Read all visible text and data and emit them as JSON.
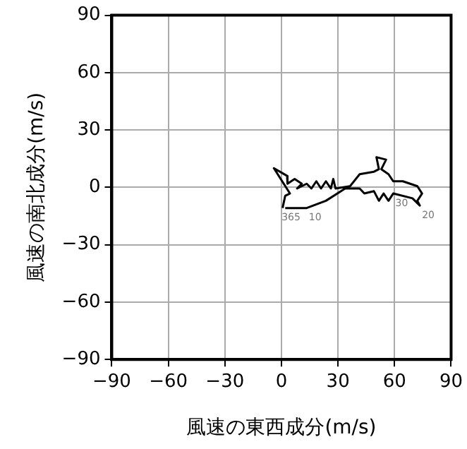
{
  "chart_data": {
    "type": "line",
    "xlabel": "風速の東西成分(m/s)",
    "ylabel": "風速の南北成分(m/s)",
    "x": [
      0.6,
      2,
      4.5,
      -4,
      3,
      3.2,
      7,
      10.8,
      8.3,
      13.4,
      15.9,
      18.5,
      21,
      23.6,
      26.2,
      27.5,
      28.7,
      36.4,
      41.5,
      49.1,
      51.7,
      50.4,
      55.5,
      53,
      56.8,
      59.3,
      64.4,
      72.1,
      74.6,
      72.1,
      73.4,
      69.5,
      59.3,
      56.8,
      54.2,
      51.7,
      49.1,
      44,
      41.5,
      33.8,
      23.6,
      13.4,
      2
    ],
    "series": [
      {
        "color": "#000000",
        "values": [
          -10.8,
          -4.4,
          -3.2,
          10,
          6,
          1.9,
          4.4,
          1.9,
          -0.6,
          1.9,
          -0.6,
          3.2,
          -0.6,
          3.2,
          -0.6,
          4.4,
          -0.6,
          0.6,
          6.9,
          8.2,
          9.5,
          15.8,
          14.5,
          9.5,
          6.9,
          3.2,
          3.2,
          0.6,
          -3.2,
          -7,
          -9.5,
          -5.7,
          -3.2,
          -7,
          -3.2,
          -7,
          -2,
          -3.2,
          -0.6,
          -0.6,
          -7,
          -10.8,
          -10.8
        ]
      }
    ],
    "xlim": [
      -90,
      90
    ],
    "ylim": [
      -90,
      90
    ],
    "xticks": [
      {
        "value": -90,
        "label": "−90"
      },
      {
        "value": -60,
        "label": "−60"
      },
      {
        "value": -30,
        "label": "−30"
      },
      0,
      30,
      60,
      90
    ],
    "yticks": [
      {
        "value": -90,
        "label": "−90"
      },
      {
        "value": -60,
        "label": "−60"
      },
      {
        "value": -30,
        "label": "−30"
      },
      0,
      30,
      60,
      90
    ],
    "grid": true,
    "marker": "none",
    "line_style": "solid",
    "legend": false,
    "annotations": [
      {
        "text": "365",
        "x": 0.6,
        "y": -10.8
      },
      {
        "text": "10",
        "x": 13.4,
        "y": -10.8
      },
      {
        "text": "30",
        "x": 59.3,
        "y": -3.2
      },
      {
        "text": "20",
        "x": 73.4,
        "y": -9.5
      }
    ]
  }
}
